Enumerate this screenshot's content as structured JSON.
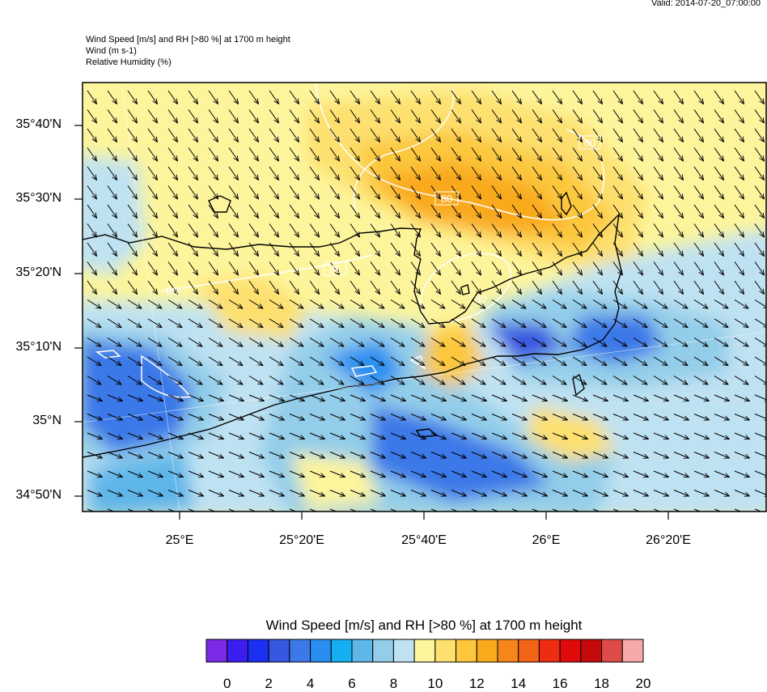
{
  "valid_text": "Valid: 2014-07-20_07:00:00",
  "titles": {
    "line1": "Wind Speed [m/s] and RH [>80 %] at 1700 m height",
    "line2": "Wind   (m s-1)",
    "line3": "Relative Humidity    (%)"
  },
  "lat_labels": [
    "35°40'N",
    "35°30'N",
    "35°20'N",
    "35°10'N",
    "35°N",
    "34°50'N"
  ],
  "lon_labels": [
    "25°E",
    "25°20'E",
    "25°40'E",
    "26°E",
    "26°20'E"
  ],
  "contour_label": "80",
  "colorbar": {
    "title": "Wind Speed [m/s] and RH [>80 %] at 1700 m height",
    "labels": [
      "0",
      "2",
      "4",
      "6",
      "8",
      "10",
      "12",
      "14",
      "16",
      "18",
      "20"
    ],
    "colors": [
      "#7b2be6",
      "#3a1ef0",
      "#1b30f0",
      "#3857e0",
      "#3b78e8",
      "#2a8ef0",
      "#16aef2",
      "#5fb6e9",
      "#93cde9",
      "#bfe2f2",
      "#fdf59c",
      "#fde070",
      "#fcc73c",
      "#f9a91a",
      "#f5861a",
      "#f36418",
      "#ee2c12",
      "#e00a0a",
      "#c40a0a",
      "#dd4a4a",
      "#f5a9a9"
    ]
  }
}
